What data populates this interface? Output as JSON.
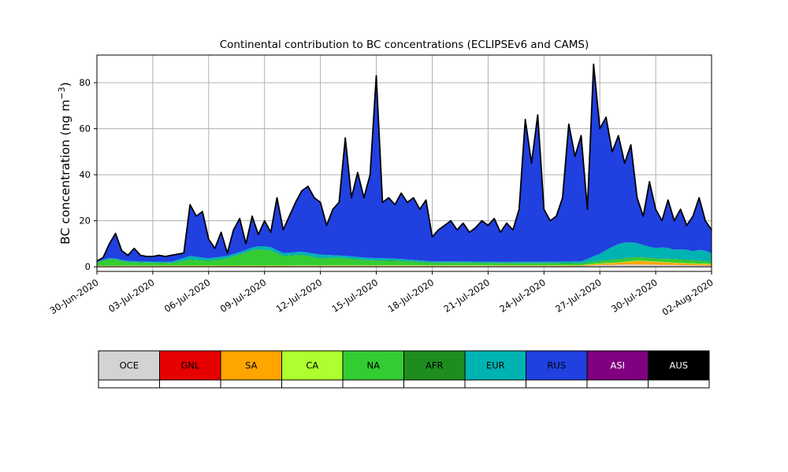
{
  "figure": {
    "background": "#ffffff"
  },
  "chart_data": {
    "type": "area",
    "stacked": true,
    "title": "Continental contribution to BC concentrations (ECLIPSEv6 and CAMS)",
    "ylabel": "BC concentration (ng m⁻³)",
    "ylabel_main": "BC concentration (ng m",
    "ylabel_sup": "−3",
    "ylabel_close": ")",
    "xlim_days": [
      0,
      33
    ],
    "ylim": [
      -2,
      92
    ],
    "y_ticks": [
      0,
      20,
      40,
      60,
      80
    ],
    "x_ticks": [
      {
        "day": 0,
        "label": "30-Jun-2020"
      },
      {
        "day": 3,
        "label": "03-Jul-2020"
      },
      {
        "day": 6,
        "label": "06-Jul-2020"
      },
      {
        "day": 9,
        "label": "09-Jul-2020"
      },
      {
        "day": 12,
        "label": "12-Jul-2020"
      },
      {
        "day": 15,
        "label": "15-Jul-2020"
      },
      {
        "day": 18,
        "label": "18-Jul-2020"
      },
      {
        "day": 21,
        "label": "21-Jul-2020"
      },
      {
        "day": 24,
        "label": "24-Jul-2020"
      },
      {
        "day": 27,
        "label": "27-Jul-2020"
      },
      {
        "day": 30,
        "label": "30-Jul-2020"
      },
      {
        "day": 33,
        "label": "02-Aug-2020"
      }
    ],
    "grid_on": true,
    "grid_color": "#b0b0b0",
    "outline_color": "#000000",
    "outline_width": 1.8,
    "days_span": 33,
    "total": [
      2.5,
      4,
      10,
      14.5,
      7,
      5,
      8,
      5,
      4.5,
      4.5,
      5,
      4.5,
      5,
      5.5,
      6,
      27,
      22,
      24,
      12,
      8,
      15,
      6,
      16,
      21,
      10,
      22,
      14,
      20,
      15,
      30,
      16,
      22,
      28,
      33,
      35,
      30,
      28,
      18,
      25,
      28,
      56,
      30,
      41,
      30,
      40,
      83,
      28,
      30,
      27,
      32,
      28,
      30,
      25,
      29,
      13,
      16,
      18,
      20,
      16,
      19,
      15,
      17,
      20,
      18,
      21,
      15,
      19,
      16,
      25,
      64,
      45,
      66,
      25,
      20,
      22,
      30,
      62,
      48,
      57,
      25,
      88,
      60,
      65,
      50,
      57,
      45,
      53,
      30,
      22,
      37,
      25,
      20,
      29,
      20,
      25,
      18,
      22,
      30,
      20,
      16
    ],
    "series": [
      {
        "name": "OCE",
        "keyframes": [
          [
            0,
            0.2
          ],
          [
            26,
            0.3
          ],
          [
            27,
            0.8
          ],
          [
            29,
            1.0
          ],
          [
            31,
            0.8
          ],
          [
            33,
            0.5
          ]
        ]
      },
      {
        "name": "GNL",
        "keyframes": [
          [
            0,
            0.05
          ],
          [
            33,
            0.05
          ]
        ]
      },
      {
        "name": "SA",
        "keyframes": [
          [
            0,
            0.1
          ],
          [
            26,
            0.2
          ],
          [
            28,
            0.8
          ],
          [
            29,
            1.5
          ],
          [
            30,
            1.2
          ],
          [
            31,
            0.8
          ],
          [
            33,
            0.5
          ]
        ]
      },
      {
        "name": "CA",
        "keyframes": [
          [
            0,
            0.15
          ],
          [
            33,
            0.15
          ]
        ]
      },
      {
        "name": "NA",
        "keyframes": [
          [
            0,
            1.2
          ],
          [
            0.8,
            3
          ],
          [
            1.5,
            1.5
          ],
          [
            2.5,
            1.2
          ],
          [
            4,
            1
          ],
          [
            5,
            2.5
          ],
          [
            6,
            2
          ],
          [
            7,
            3
          ],
          [
            7.8,
            5
          ],
          [
            8.5,
            7
          ],
          [
            9.3,
            6.5
          ],
          [
            10,
            4
          ],
          [
            11,
            4.5
          ],
          [
            12,
            3
          ],
          [
            13,
            3.2
          ],
          [
            14,
            2.5
          ],
          [
            15,
            2
          ],
          [
            16,
            2
          ],
          [
            17,
            1.5
          ],
          [
            18,
            1
          ],
          [
            20,
            1
          ],
          [
            22,
            0.8
          ],
          [
            24,
            0.8
          ],
          [
            26,
            0.7
          ],
          [
            27,
            1
          ],
          [
            28,
            1.3
          ],
          [
            29,
            1.5
          ],
          [
            30,
            1.2
          ],
          [
            31,
            1.5
          ],
          [
            32,
            1.2
          ],
          [
            33,
            1
          ]
        ]
      },
      {
        "name": "AFR",
        "keyframes": [
          [
            0,
            0.15
          ],
          [
            33,
            0.15
          ]
        ]
      },
      {
        "name": "EUR",
        "keyframes": [
          [
            0,
            0.4
          ],
          [
            4,
            0.5
          ],
          [
            5,
            1.5
          ],
          [
            6,
            1
          ],
          [
            8,
            1
          ],
          [
            9,
            1.5
          ],
          [
            10,
            1.2
          ],
          [
            12,
            1.5
          ],
          [
            13,
            1
          ],
          [
            15,
            1
          ],
          [
            16,
            0.8
          ],
          [
            18,
            0.6
          ],
          [
            20,
            0.5
          ],
          [
            22,
            0.5
          ],
          [
            24,
            0.6
          ],
          [
            26,
            0.8
          ],
          [
            27,
            3
          ],
          [
            27.5,
            5
          ],
          [
            28,
            6.5
          ],
          [
            28.5,
            7
          ],
          [
            29,
            6
          ],
          [
            29.5,
            5
          ],
          [
            30,
            4.5
          ],
          [
            30.5,
            5
          ],
          [
            31,
            4
          ],
          [
            31.5,
            4.5
          ],
          [
            32,
            4
          ],
          [
            32.5,
            5
          ],
          [
            33,
            3.5
          ]
        ]
      },
      {
        "name": "RUS",
        "remainder": true
      },
      {
        "name": "ASI",
        "keyframes": [
          [
            0,
            0.1
          ],
          [
            33,
            0.1
          ]
        ]
      },
      {
        "name": "AUS",
        "keyframes": [
          [
            0,
            0.03
          ],
          [
            33,
            0.03
          ]
        ]
      }
    ]
  },
  "legend": {
    "items": [
      {
        "label": "OCE",
        "color": "#d3d3d3",
        "text_color": "#000000"
      },
      {
        "label": "GNL",
        "color": "#e60000",
        "text_color": "#000000"
      },
      {
        "label": "SA",
        "color": "#ffa500",
        "text_color": "#000000"
      },
      {
        "label": "CA",
        "color": "#adff2f",
        "text_color": "#000000"
      },
      {
        "label": "NA",
        "color": "#33cc33",
        "text_color": "#000000"
      },
      {
        "label": "AFR",
        "color": "#1e8c1e",
        "text_color": "#000000"
      },
      {
        "label": "EUR",
        "color": "#00b3b3",
        "text_color": "#000000"
      },
      {
        "label": "RUS",
        "color": "#2040e0",
        "text_color": "#000000"
      },
      {
        "label": "ASI",
        "color": "#800080",
        "text_color": "#ffffff"
      },
      {
        "label": "AUS",
        "color": "#000000",
        "text_color": "#ffffff"
      }
    ]
  }
}
